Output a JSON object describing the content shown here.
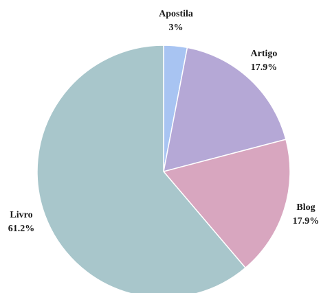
{
  "chart_data": {
    "type": "pie",
    "title": "",
    "start_angle_deg": -90,
    "direction": "clockwise",
    "slices": [
      {
        "label": "Apostila",
        "value": 3.0,
        "display": "3%",
        "color": "#a8c4f2"
      },
      {
        "label": "Artigo",
        "value": 17.9,
        "display": "17.9%",
        "color": "#b5a8d6"
      },
      {
        "label": "Blog",
        "value": 17.9,
        "display": "17.9%",
        "color": "#d8a6bf"
      },
      {
        "label": "Livro",
        "value": 61.2,
        "display": "61.2%",
        "color": "#a8c6cb"
      }
    ]
  }
}
